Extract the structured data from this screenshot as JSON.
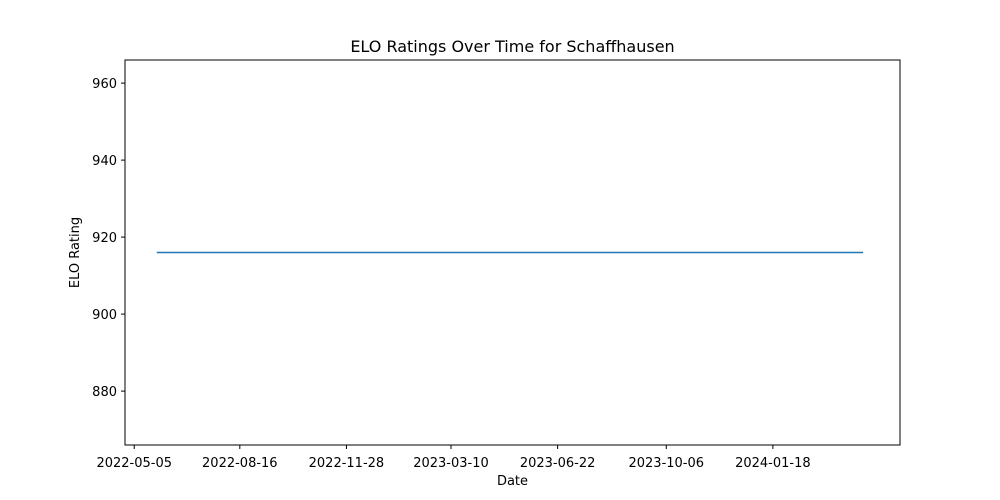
{
  "chart_data": {
    "type": "line",
    "title": "ELO Ratings Over Time for Schaffhausen",
    "xlabel": "Date",
    "ylabel": "ELO Rating",
    "x_ticks": [
      "2022-05-05",
      "2022-08-16",
      "2022-11-28",
      "2023-03-10",
      "2023-06-22",
      "2023-10-06",
      "2024-01-18"
    ],
    "y_ticks": [
      880,
      900,
      920,
      940,
      960
    ],
    "xlim": [
      "2022-04-26",
      "2024-05-21"
    ],
    "ylim": [
      866,
      966
    ],
    "grid": false,
    "series": [
      {
        "color": "#1f77b4",
        "x": [
          "2022-05-27",
          "2024-04-15"
        ],
        "y": [
          916,
          916
        ]
      }
    ]
  }
}
